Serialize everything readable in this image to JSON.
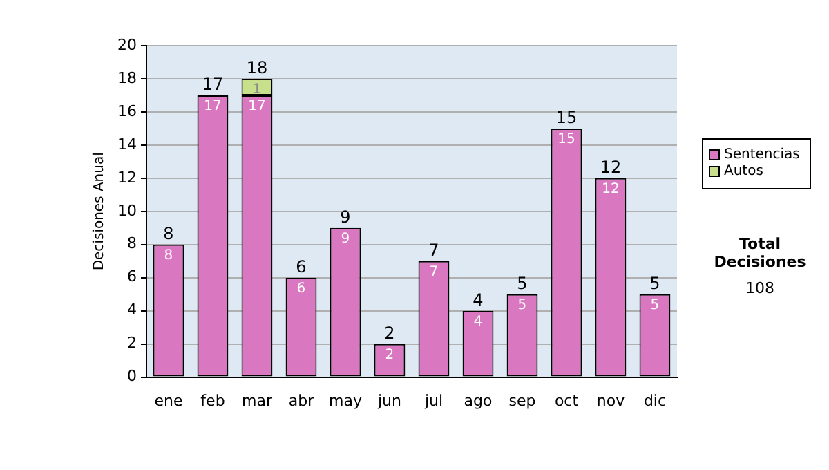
{
  "chart_data": {
    "type": "bar",
    "ylabel": "Decisiones Anual",
    "categories": [
      "ene",
      "feb",
      "mar",
      "abr",
      "may",
      "jun",
      "jul",
      "ago",
      "sep",
      "oct",
      "nov",
      "dic"
    ],
    "stacked": true,
    "series": [
      {
        "name": "Sentencias",
        "color": "#d977c0",
        "values": [
          8,
          17,
          17,
          6,
          9,
          2,
          7,
          4,
          5,
          15,
          12,
          5
        ],
        "value_labels": [
          "8",
          "17",
          "17",
          "6",
          "9",
          "2",
          "7",
          "4",
          "5",
          "15",
          "12",
          "5"
        ]
      },
      {
        "name": "Autos",
        "color": "#c8e08c",
        "values": [
          null,
          null,
          1,
          null,
          null,
          null,
          null,
          null,
          null,
          null,
          null,
          null
        ],
        "value_labels": [
          null,
          null,
          "1",
          null,
          null,
          null,
          null,
          null,
          null,
          null,
          null,
          null
        ]
      }
    ],
    "totals": [
      "8",
      "17",
      "18",
      "6",
      "9",
      "2",
      "7",
      "4",
      "5",
      "15",
      "12",
      "5"
    ],
    "ylim": [
      0,
      20
    ],
    "yticks": [
      0,
      2,
      4,
      6,
      8,
      10,
      12,
      14,
      16,
      18,
      20
    ],
    "grid": "y",
    "legend": "right",
    "annotations": [
      "Total Decisiones",
      "108"
    ]
  }
}
